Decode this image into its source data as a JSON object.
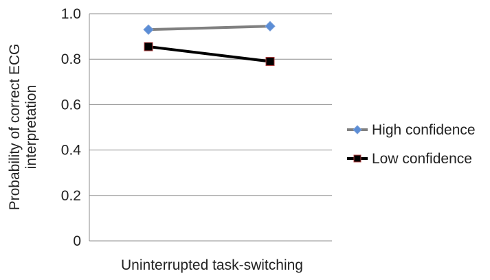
{
  "chart_data": {
    "type": "line",
    "title": "",
    "xlabel": "Uninterrupted task-switching",
    "ylabel_lines": [
      "Probability of correct ECG",
      "interpretation"
    ],
    "ylim": [
      0,
      1.0
    ],
    "yticks": [
      "0",
      "0.2",
      "0.4",
      "0.6",
      "0.8",
      "1.0"
    ],
    "ytick_values": [
      0,
      0.2,
      0.4,
      0.6,
      0.8,
      1.0
    ],
    "x": [
      1,
      2
    ],
    "grid": true,
    "legend_position": "right",
    "series": [
      {
        "name": "High confidence",
        "values": [
          0.93,
          0.945
        ],
        "color": "#808080",
        "marker": "diamond",
        "marker_color": "#5b8dd6"
      },
      {
        "name": "Low confidence",
        "values": [
          0.855,
          0.79
        ],
        "color": "#000000",
        "marker": "square",
        "marker_color": "#000000"
      }
    ]
  }
}
